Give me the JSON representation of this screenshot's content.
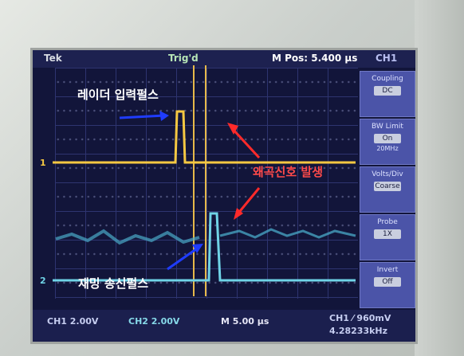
{
  "screen": {
    "brand": "Tek",
    "trigger_status": "Trig'd",
    "position": "M Pos: 5.400 μs",
    "channel_header": "CH1"
  },
  "side_menu": [
    {
      "title": "Coupling",
      "value": "DC",
      "sub": ""
    },
    {
      "title": "BW Limit",
      "value": "On",
      "sub": "20MHz"
    },
    {
      "title": "Volts/Div",
      "value": "Coarse",
      "sub": ""
    },
    {
      "title": "Probe",
      "value": "1X",
      "sub": ""
    },
    {
      "title": "Invert",
      "value": "Off",
      "sub": ""
    }
  ],
  "bottom_bar": {
    "ch1": "CH1  2.00V",
    "ch2": "CH2  2.00V",
    "timebase": "M 5.00 μs",
    "ch1_trigger": "CH1 ⁄ 960mV",
    "frequency": "4.28233kHz"
  },
  "annotations": {
    "radar_pulse": "레이더 입력펄스",
    "distortion": "왜곡신호 발생",
    "jamming_pulse": "재밍 송신펄스"
  },
  "colors": {
    "ch1_trace": "#f5c842",
    "ch2_trace": "#6fd3e6",
    "annotation_arrow_blue": "#1f3cff",
    "annotation_arrow_red": "#ff2a2a"
  }
}
